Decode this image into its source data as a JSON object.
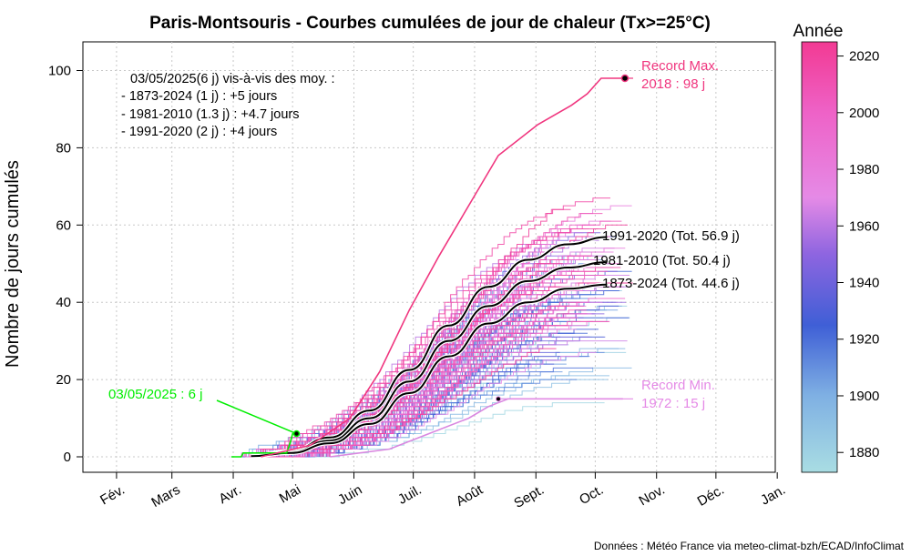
{
  "chart_data": {
    "type": "line",
    "title": "Paris-Montsouris - Courbes cumulées de jour de chaleur (Tx>=25°C)",
    "ylabel": "Nombre de jours cumulés",
    "ylim": [
      0,
      105
    ],
    "yticks": [
      0,
      20,
      40,
      60,
      80,
      100
    ],
    "x_unit": "day_of_year",
    "xlim": [
      15,
      365
    ],
    "xticks": [
      {
        "label": "Fév.",
        "day": 32
      },
      {
        "label": "Mars",
        "day": 60
      },
      {
        "label": "Avr.",
        "day": 91
      },
      {
        "label": "Mai",
        "day": 121
      },
      {
        "label": "Juin",
        "day": 152
      },
      {
        "label": "Juil.",
        "day": 182
      },
      {
        "label": "Août",
        "day": 213
      },
      {
        "label": "Sept.",
        "day": 244
      },
      {
        "label": "Oct.",
        "day": 274
      },
      {
        "label": "Nov.",
        "day": 305
      },
      {
        "label": "Déc.",
        "day": 335
      },
      {
        "label": "Jan.",
        "day": 366
      }
    ],
    "grid": true,
    "colorbar": {
      "title": "Année",
      "min": 1873,
      "max": 2025,
      "ticks": [
        1880,
        1900,
        1920,
        1940,
        1960,
        1980,
        2000,
        2020
      ],
      "stops": [
        {
          "year": 1873,
          "color": "#a9dde3"
        },
        {
          "year": 1900,
          "color": "#7fb0e3"
        },
        {
          "year": 1925,
          "color": "#3f5fd6"
        },
        {
          "year": 1950,
          "color": "#8e65e0"
        },
        {
          "year": 1970,
          "color": "#e58ae6"
        },
        {
          "year": 2000,
          "color": "#ee62c7"
        },
        {
          "year": 2025,
          "color": "#f23a93"
        }
      ]
    },
    "series": [
      {
        "name": "1991-2020",
        "total_label": "1991-2020 (Tot. 56.9 j)",
        "color": "#000000",
        "x": [
          100,
          120,
          140,
          160,
          180,
          200,
          220,
          240,
          260,
          280
        ],
        "y": [
          0.3,
          1.5,
          5,
          12,
          22.5,
          34,
          44,
          51,
          55,
          56.9
        ]
      },
      {
        "name": "1981-2010",
        "total_label": "1981-2010 (Tot. 50.4 j)",
        "color": "#000000",
        "x": [
          100,
          120,
          140,
          160,
          180,
          200,
          220,
          240,
          260,
          280
        ],
        "y": [
          0.3,
          1.3,
          4.2,
          10,
          19.5,
          30,
          39,
          45.5,
          49,
          50.4
        ]
      },
      {
        "name": "1873-2024",
        "total_label": "1873-2024 (Tot. 44.6 j)",
        "color": "#000000",
        "x": [
          100,
          120,
          140,
          160,
          180,
          200,
          220,
          240,
          260,
          280
        ],
        "y": [
          0.2,
          1,
          3.5,
          8.5,
          16.5,
          26,
          34.5,
          40,
          43.5,
          44.6
        ]
      },
      {
        "name": "2025",
        "color": "#00ee00",
        "x": [
          90,
          95,
          96,
          108,
          110,
          118,
          120,
          121,
          123
        ],
        "y": [
          0,
          0,
          1,
          1,
          1,
          1,
          4,
          6,
          6
        ]
      },
      {
        "name": "2018",
        "color": "#f0367f",
        "x": [
          105,
          130,
          150,
          165,
          180,
          195,
          210,
          225,
          245,
          262,
          270,
          277,
          288
        ],
        "y": [
          0,
          3,
          10,
          22,
          38,
          52,
          65,
          78,
          86,
          91,
          94,
          98,
          98
        ]
      },
      {
        "name": "1972",
        "color": "#d987e0",
        "x": [
          140,
          170,
          190,
          210,
          220,
          230,
          288
        ],
        "y": [
          0,
          2,
          6,
          10,
          13,
          15,
          15
        ]
      }
    ],
    "annotations": {
      "summary": [
        "03/05/2025(6 j) vis-à-vis des moy. :",
        "- 1873-2024 (1 j) : +5 jours",
        "- 1981-2010 (1.3 j) : +4.7 jours",
        "- 1991-2020 (2 j) : +4 jours"
      ],
      "record_max": {
        "line1": "Record Max.",
        "line2": "2018 : 98 j",
        "day": 289,
        "value": 98,
        "color": "#f0367f"
      },
      "record_min": {
        "line1": "Record Min.",
        "line2": "1972 : 15 j",
        "day": 225,
        "value": 15,
        "color": "#e58ae6"
      },
      "current": {
        "label": "03/05/2025 : 6 j",
        "day": 123,
        "value": 6,
        "color": "#00ee00"
      }
    },
    "source": "Données : Météo France via meteo-climat-bzh/ECAD/InfoClimat"
  }
}
